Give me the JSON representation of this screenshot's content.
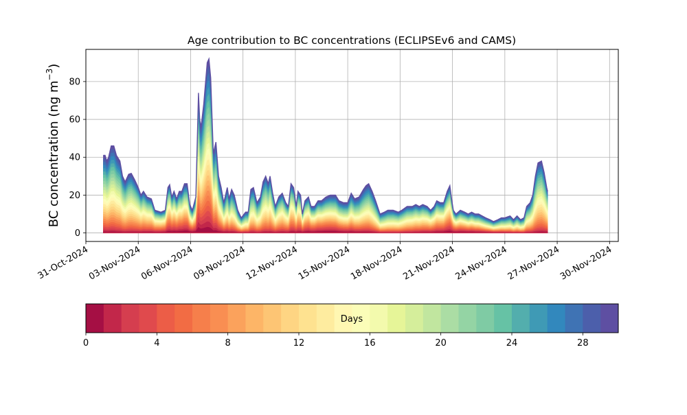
{
  "chart_data": {
    "type": "area",
    "stacking": "stacked",
    "title": "Age contribution to BC concentrations (ECLIPSEv6 and CAMS)",
    "xlabel": "",
    "ylabel_main": "BC concentration (ng m",
    "ylabel_sup": "−3",
    "ylabel_close": ")",
    "xlim": [
      0,
      30.5
    ],
    "ylim": [
      -4.5,
      97
    ],
    "grid": true,
    "yticks": [
      0,
      20,
      40,
      60,
      80
    ],
    "xtick_positions": [
      0,
      3,
      6,
      9,
      12,
      15,
      18,
      21,
      24,
      27,
      30
    ],
    "xtick_labels": [
      "31-Oct-2024",
      "03-Nov-2024",
      "06-Nov-2024",
      "09-Nov-2024",
      "12-Nov-2024",
      "15-Nov-2024",
      "18-Nov-2024",
      "21-Nov-2024",
      "24-Nov-2024",
      "27-Nov-2024",
      "30-Nov-2024"
    ],
    "x_units": "days since 31-Oct-2024",
    "total_series": [
      {
        "x": 1.0,
        "y": 41
      },
      {
        "x": 1.1,
        "y": 41
      },
      {
        "x": 1.2,
        "y": 38
      },
      {
        "x": 1.3,
        "y": 40
      },
      {
        "x": 1.45,
        "y": 46
      },
      {
        "x": 1.6,
        "y": 46
      },
      {
        "x": 1.75,
        "y": 41
      },
      {
        "x": 1.95,
        "y": 38
      },
      {
        "x": 2.1,
        "y": 30
      },
      {
        "x": 2.25,
        "y": 27
      },
      {
        "x": 2.45,
        "y": 31
      },
      {
        "x": 2.6,
        "y": 31.5
      },
      {
        "x": 2.8,
        "y": 28
      },
      {
        "x": 3.0,
        "y": 24
      },
      {
        "x": 3.15,
        "y": 20
      },
      {
        "x": 3.3,
        "y": 22
      },
      {
        "x": 3.5,
        "y": 19
      },
      {
        "x": 3.75,
        "y": 18
      },
      {
        "x": 3.95,
        "y": 12
      },
      {
        "x": 4.3,
        "y": 11
      },
      {
        "x": 4.55,
        "y": 12
      },
      {
        "x": 4.7,
        "y": 24
      },
      {
        "x": 4.8,
        "y": 25.5
      },
      {
        "x": 4.92,
        "y": 19
      },
      {
        "x": 5.05,
        "y": 22
      },
      {
        "x": 5.2,
        "y": 18
      },
      {
        "x": 5.35,
        "y": 22
      },
      {
        "x": 5.5,
        "y": 22
      },
      {
        "x": 5.65,
        "y": 26
      },
      {
        "x": 5.8,
        "y": 26
      },
      {
        "x": 5.95,
        "y": 15
      },
      {
        "x": 6.1,
        "y": 12
      },
      {
        "x": 6.3,
        "y": 19
      },
      {
        "x": 6.45,
        "y": 74
      },
      {
        "x": 6.52,
        "y": 60
      },
      {
        "x": 6.6,
        "y": 56
      },
      {
        "x": 6.75,
        "y": 68
      },
      {
        "x": 6.95,
        "y": 90
      },
      {
        "x": 7.05,
        "y": 92
      },
      {
        "x": 7.15,
        "y": 82
      },
      {
        "x": 7.3,
        "y": 42
      },
      {
        "x": 7.45,
        "y": 48
      },
      {
        "x": 7.6,
        "y": 30
      },
      {
        "x": 7.75,
        "y": 24
      },
      {
        "x": 7.9,
        "y": 16
      },
      {
        "x": 8.0,
        "y": 20
      },
      {
        "x": 8.1,
        "y": 24
      },
      {
        "x": 8.2,
        "y": 18
      },
      {
        "x": 8.35,
        "y": 23
      },
      {
        "x": 8.5,
        "y": 20
      },
      {
        "x": 8.7,
        "y": 12
      },
      {
        "x": 8.9,
        "y": 8
      },
      {
        "x": 9.15,
        "y": 11
      },
      {
        "x": 9.3,
        "y": 11
      },
      {
        "x": 9.45,
        "y": 23
      },
      {
        "x": 9.6,
        "y": 24
      },
      {
        "x": 9.8,
        "y": 16
      },
      {
        "x": 10.0,
        "y": 19
      },
      {
        "x": 10.15,
        "y": 27
      },
      {
        "x": 10.3,
        "y": 30
      },
      {
        "x": 10.45,
        "y": 26
      },
      {
        "x": 10.55,
        "y": 30
      },
      {
        "x": 10.7,
        "y": 21
      },
      {
        "x": 10.85,
        "y": 14
      },
      {
        "x": 11.05,
        "y": 19
      },
      {
        "x": 11.25,
        "y": 21
      },
      {
        "x": 11.45,
        "y": 16
      },
      {
        "x": 11.6,
        "y": 14
      },
      {
        "x": 11.75,
        "y": 26
      },
      {
        "x": 11.9,
        "y": 24
      },
      {
        "x": 12.05,
        "y": 14
      },
      {
        "x": 12.15,
        "y": 22
      },
      {
        "x": 12.3,
        "y": 20
      },
      {
        "x": 12.4,
        "y": 10
      },
      {
        "x": 12.55,
        "y": 17
      },
      {
        "x": 12.75,
        "y": 19
      },
      {
        "x": 12.9,
        "y": 14
      },
      {
        "x": 13.1,
        "y": 14
      },
      {
        "x": 13.3,
        "y": 17
      },
      {
        "x": 13.5,
        "y": 17
      },
      {
        "x": 13.75,
        "y": 19
      },
      {
        "x": 14.0,
        "y": 20
      },
      {
        "x": 14.3,
        "y": 20
      },
      {
        "x": 14.5,
        "y": 17
      },
      {
        "x": 14.75,
        "y": 16
      },
      {
        "x": 15.0,
        "y": 16
      },
      {
        "x": 15.2,
        "y": 21
      },
      {
        "x": 15.4,
        "y": 18
      },
      {
        "x": 15.65,
        "y": 19
      },
      {
        "x": 15.9,
        "y": 23
      },
      {
        "x": 16.05,
        "y": 25
      },
      {
        "x": 16.2,
        "y": 26
      },
      {
        "x": 16.4,
        "y": 22
      },
      {
        "x": 16.6,
        "y": 17
      },
      {
        "x": 16.85,
        "y": 10
      },
      {
        "x": 17.1,
        "y": 11
      },
      {
        "x": 17.3,
        "y": 12
      },
      {
        "x": 17.6,
        "y": 12
      },
      {
        "x": 17.9,
        "y": 11
      },
      {
        "x": 18.1,
        "y": 12
      },
      {
        "x": 18.4,
        "y": 14
      },
      {
        "x": 18.7,
        "y": 14
      },
      {
        "x": 18.9,
        "y": 15
      },
      {
        "x": 19.1,
        "y": 14
      },
      {
        "x": 19.3,
        "y": 15
      },
      {
        "x": 19.55,
        "y": 14
      },
      {
        "x": 19.75,
        "y": 12
      },
      {
        "x": 19.95,
        "y": 14
      },
      {
        "x": 20.1,
        "y": 17
      },
      {
        "x": 20.3,
        "y": 16
      },
      {
        "x": 20.5,
        "y": 16
      },
      {
        "x": 20.7,
        "y": 22
      },
      {
        "x": 20.85,
        "y": 25
      },
      {
        "x": 20.95,
        "y": 18
      },
      {
        "x": 21.05,
        "y": 12
      },
      {
        "x": 21.2,
        "y": 10
      },
      {
        "x": 21.45,
        "y": 12
      },
      {
        "x": 21.7,
        "y": 11
      },
      {
        "x": 21.9,
        "y": 10
      },
      {
        "x": 22.1,
        "y": 11
      },
      {
        "x": 22.3,
        "y": 10
      },
      {
        "x": 22.5,
        "y": 10
      },
      {
        "x": 22.7,
        "y": 9
      },
      {
        "x": 22.9,
        "y": 8
      },
      {
        "x": 23.15,
        "y": 7
      },
      {
        "x": 23.35,
        "y": 6
      },
      {
        "x": 23.6,
        "y": 7
      },
      {
        "x": 23.8,
        "y": 8
      },
      {
        "x": 24.0,
        "y": 8
      },
      {
        "x": 24.3,
        "y": 9
      },
      {
        "x": 24.5,
        "y": 7
      },
      {
        "x": 24.7,
        "y": 9
      },
      {
        "x": 24.9,
        "y": 7
      },
      {
        "x": 25.1,
        "y": 8
      },
      {
        "x": 25.25,
        "y": 14
      },
      {
        "x": 25.45,
        "y": 16
      },
      {
        "x": 25.6,
        "y": 20
      },
      {
        "x": 25.75,
        "y": 30
      },
      {
        "x": 25.9,
        "y": 37
      },
      {
        "x": 26.1,
        "y": 38
      },
      {
        "x": 26.25,
        "y": 32
      },
      {
        "x": 26.4,
        "y": 24
      },
      {
        "x": 26.45,
        "y": 22
      }
    ],
    "colorbar": {
      "label": "Days",
      "min": 0,
      "max": 30,
      "n_bins": 30,
      "ticks": [
        0,
        4,
        8,
        12,
        16,
        20,
        24,
        28
      ],
      "colors": [
        "#a50f44",
        "#c2274a",
        "#d53e4f",
        "#e04a4d",
        "#ec5d47",
        "#f26c44",
        "#f67f4b",
        "#f98e52",
        "#fba25c",
        "#fdb567",
        "#fdc574",
        "#fed583",
        "#fee290",
        "#feec9f",
        "#fff7b2",
        "#fbfdb8",
        "#f3faad",
        "#e6f598",
        "#d5ee9b",
        "#c1e69f",
        "#abdda4",
        "#94d4a4",
        "#7fcba4",
        "#66c2a5",
        "#53aead",
        "#3f9ab5",
        "#3288bd",
        "#3f73b4",
        "#4c5fab",
        "#5e4fa2"
      ]
    }
  }
}
